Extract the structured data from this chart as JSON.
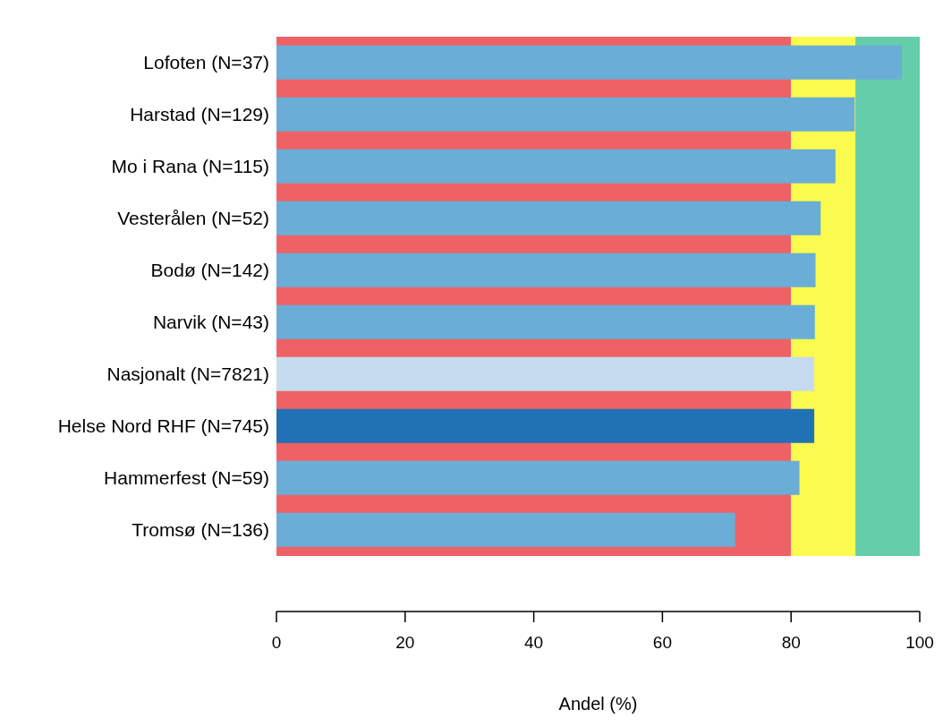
{
  "chart_data": {
    "type": "bar",
    "orientation": "horizontal",
    "xlabel": "Andel (%)",
    "categories": [
      "Lofoten (N=37)",
      "Harstad (N=129)",
      "Mo i Rana (N=115)",
      "Vesterålen (N=52)",
      "Bodø (N=142)",
      "Narvik (N=43)",
      "Nasjonalt (N=7821)",
      "Helse Nord RHF (N=745)",
      "Hammerfest (N=59)",
      "Tromsø (N=136)"
    ],
    "values": [
      97.2,
      89.9,
      86.9,
      84.6,
      83.8,
      83.7,
      83.6,
      83.6,
      81.3,
      71.3
    ],
    "colors": [
      "#6aadd6",
      "#6aadd6",
      "#6aadd6",
      "#6aadd6",
      "#6aadd6",
      "#6aadd6",
      "#c6dbef",
      "#2171b5",
      "#6aadd6",
      "#6aadd6"
    ],
    "xlim": [
      0,
      100
    ],
    "xticks": [
      0,
      20,
      40,
      60,
      80,
      100
    ],
    "bands": [
      {
        "axis": "x",
        "from": 0,
        "to": 80,
        "color": "#ee6266"
      },
      {
        "axis": "x",
        "from": 80,
        "to": 90,
        "color": "#fbfa4e"
      },
      {
        "axis": "x",
        "from": 90,
        "to": 100,
        "color": "#66cdaa"
      }
    ],
    "grid": false,
    "legend": false
  }
}
